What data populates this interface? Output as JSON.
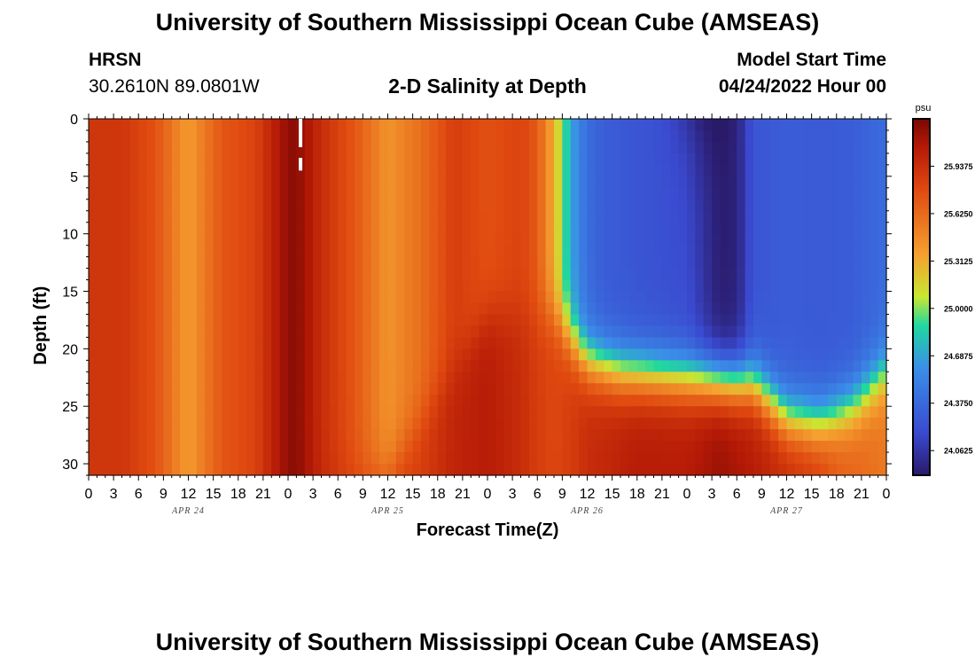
{
  "header": {
    "title": "University of Southern Mississippi Ocean Cube (AMSEAS)",
    "station": "HRSN",
    "coords": "30.2610N  89.0801W",
    "chart_title": "2-D Salinity at Depth",
    "model_start_label": "Model Start Time",
    "model_start_value": "04/24/2022 Hour 00"
  },
  "footer": {
    "title": "University of Southern Mississippi Ocean Cube (AMSEAS)"
  },
  "colors": {
    "low": "#2a1a6a",
    "mid_low": "#3a8ee8",
    "mid": "#c8e832",
    "mid_high": "#f5a030",
    "high": "#7a0804"
  },
  "chart_data": {
    "type": "heatmap",
    "title": "2-D Salinity at Depth",
    "xlabel": "Forecast Time(Z)",
    "ylabel": "Depth (ft)",
    "x_ticks": [
      "0",
      "3",
      "6",
      "9",
      "12",
      "15",
      "18",
      "21",
      "0",
      "3",
      "6",
      "9",
      "12",
      "15",
      "18",
      "21",
      "0",
      "3",
      "6",
      "9",
      "12",
      "15",
      "18",
      "21",
      "0",
      "3",
      "6",
      "9",
      "12",
      "15",
      "18",
      "21",
      "0"
    ],
    "x_dates": [
      "APR 24",
      "APR 25",
      "APR 26",
      "APR 27"
    ],
    "x_range_hours": [
      0,
      96
    ],
    "y_ticks": [
      0,
      5,
      10,
      15,
      20,
      25,
      30
    ],
    "y_range": [
      0,
      31
    ],
    "colorbar": {
      "unit": "psu",
      "labels": [
        "25.9375",
        "25.6250",
        "25.3125",
        "25.0000",
        "24.6875",
        "24.3750",
        "24.0625"
      ],
      "range": [
        23.9,
        26.25
      ]
    },
    "marker": {
      "hour": 25.5,
      "depth_range": [
        0,
        4.5
      ],
      "style": "dashed-white"
    },
    "profiles": {
      "surface_hours": [
        0,
        4,
        8,
        12,
        16,
        20,
        24,
        25,
        28,
        32,
        36,
        40,
        44,
        48,
        52,
        54,
        56,
        58,
        60,
        62,
        66,
        72,
        76,
        78,
        80,
        84,
        88,
        92,
        96
      ],
      "surface_values": [
        25.9,
        25.9,
        25.75,
        25.38,
        25.72,
        25.82,
        26.18,
        26.2,
        25.95,
        25.72,
        25.42,
        25.6,
        25.85,
        25.75,
        25.82,
        25.7,
        25.3,
        24.7,
        24.4,
        24.3,
        24.25,
        24.2,
        23.92,
        23.95,
        24.25,
        24.3,
        24.28,
        24.3,
        24.4
      ],
      "bottom_hours": [
        0,
        4,
        8,
        12,
        16,
        20,
        24,
        25,
        28,
        32,
        36,
        40,
        44,
        48,
        52,
        54,
        56,
        58,
        60,
        62,
        66,
        72,
        76,
        80,
        84,
        88,
        90,
        92,
        96
      ],
      "bottom_values": [
        25.9,
        25.9,
        25.75,
        25.38,
        25.72,
        25.82,
        26.18,
        26.2,
        26.0,
        25.85,
        25.82,
        25.85,
        26.0,
        26.05,
        25.95,
        25.85,
        25.8,
        25.85,
        25.95,
        25.98,
        26.05,
        26.05,
        26.15,
        26.05,
        25.95,
        25.85,
        25.7,
        25.65,
        25.55
      ],
      "layer_hours": [
        0,
        36,
        48,
        56,
        60,
        64,
        72,
        80,
        84,
        88,
        92,
        96
      ],
      "layer_depths": [
        31,
        31,
        17,
        17,
        21,
        22,
        22.5,
        23,
        26,
        26.5,
        25,
        22
      ]
    }
  }
}
